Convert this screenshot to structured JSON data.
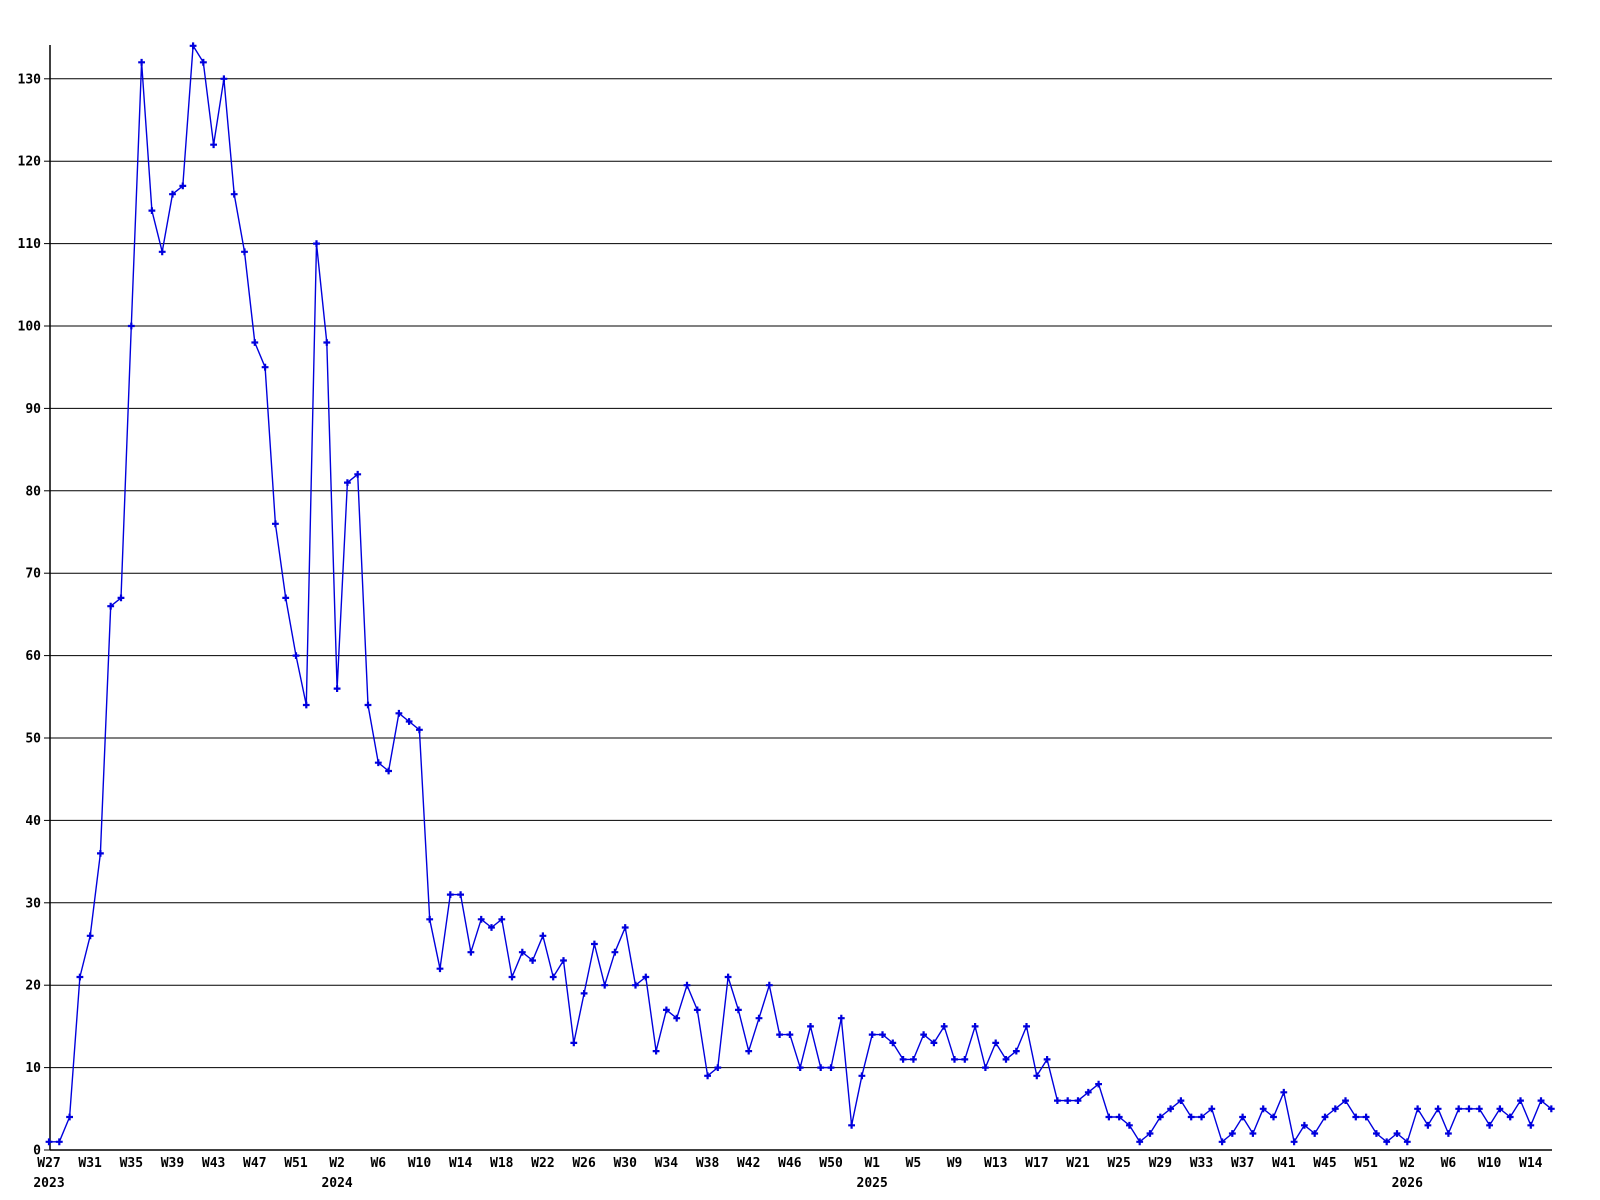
{
  "chart_data": {
    "type": "line",
    "title": "",
    "xlabel": "",
    "ylabel": "",
    "x_unit": "week",
    "ylim": [
      0,
      134
    ],
    "yticks": [
      0,
      10,
      20,
      30,
      40,
      50,
      60,
      70,
      80,
      90,
      100,
      110,
      120,
      130
    ],
    "grid": "horizontal",
    "legend_position": "none",
    "line_color": "#0000dd",
    "grid_color": "#000000",
    "axis_color": "#000000",
    "marker": "plus",
    "x_axis": {
      "tick_every": 4,
      "tick_labels": [
        "W27",
        "W31",
        "W35",
        "W39",
        "W43",
        "W47",
        "W51",
        "W2",
        "W6",
        "W10",
        "W14",
        "W18",
        "W22",
        "W26",
        "W30",
        "W34",
        "W38",
        "W42",
        "W46",
        "W50",
        "W1",
        "W5",
        "W9",
        "W13",
        "W17",
        "W21",
        "W25",
        "W29",
        "W33",
        "W37",
        "W41",
        "W45",
        "W51",
        "W2",
        "W6",
        "W10",
        "W14"
      ],
      "year_labels": [
        {
          "label": "2023",
          "point_index": 0
        },
        {
          "label": "2024",
          "point_index": 28
        },
        {
          "label": "2025",
          "point_index": 80
        },
        {
          "label": "2026",
          "point_index": 132
        }
      ]
    },
    "values": [
      1,
      1,
      4,
      21,
      26,
      36,
      66,
      67,
      100,
      132,
      114,
      109,
      116,
      117,
      134,
      132,
      122,
      130,
      116,
      109,
      98,
      95,
      76,
      67,
      60,
      54,
      110,
      98,
      56,
      81,
      82,
      54,
      47,
      46,
      53,
      52,
      51,
      28,
      22,
      31,
      31,
      24,
      28,
      27,
      28,
      21,
      24,
      23,
      26,
      21,
      23,
      13,
      19,
      25,
      20,
      24,
      27,
      20,
      21,
      12,
      17,
      16,
      20,
      17,
      9,
      10,
      21,
      17,
      12,
      16,
      20,
      14,
      14,
      10,
      15,
      10,
      10,
      16,
      3,
      9,
      14,
      14,
      13,
      11,
      11,
      14,
      13,
      15,
      11,
      11,
      15,
      10,
      13,
      11,
      12,
      15,
      9,
      11,
      6,
      6,
      6,
      7,
      8,
      4,
      4,
      3,
      1,
      2,
      4,
      5,
      6,
      4,
      4,
      5,
      1,
      2,
      4,
      2,
      5,
      4,
      7,
      1,
      3,
      2,
      4,
      5,
      6,
      4,
      4,
      2,
      1,
      2,
      1,
      5,
      3,
      5,
      2,
      5,
      5,
      5,
      3,
      5,
      4,
      6,
      3,
      6,
      5
    ]
  }
}
